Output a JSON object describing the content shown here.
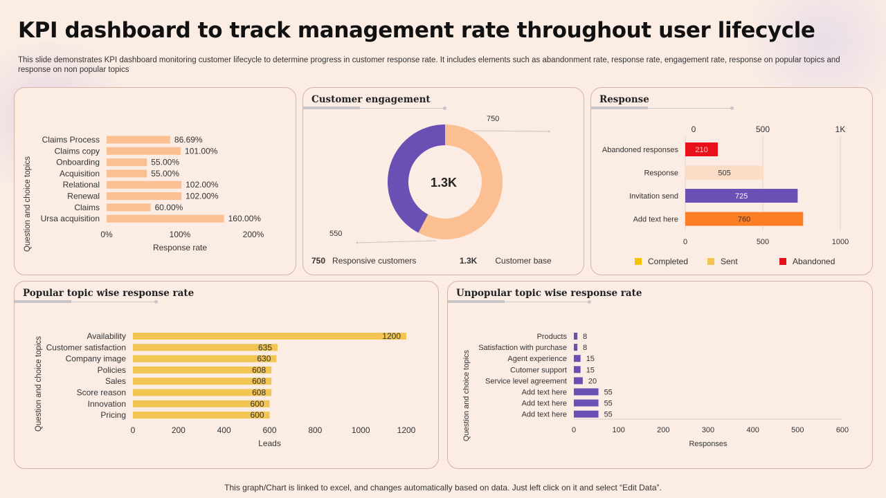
{
  "page": {
    "title": "KPI dashboard to track management rate throughout user lifecycle",
    "subtitle": "This slide demonstrates KPI dashboard monitoring customer lifecycle to determine progress in customer response rate. It includes elements such as abandonment rate, response rate, engagement rate, response on popular topics and response on non popular topics",
    "footer": "This graph/Chart is linked to excel, and changes automatically based on data. Just left click on it and select “Edit Data”."
  },
  "colors": {
    "background": "#fbece4",
    "peach": "#fbbf91",
    "purple": "#6a4fb5",
    "gold": "#f2c451",
    "red": "#e8101a",
    "orange": "#fb7d24",
    "yellow": "#f4c400"
  },
  "panels": {
    "customer_engagement": {
      "title": "Customer engagement",
      "responsive_value": "750",
      "responsive_label": "Responsive customers",
      "base_value": "1.3K",
      "base_label": "Customer base"
    },
    "response": {
      "title": "Response",
      "legend": [
        "Completed",
        "Sent",
        "Abandoned"
      ]
    },
    "popular": {
      "title": "Popular topic wise response rate"
    },
    "unpopular": {
      "title": "Unpopular topic wise response rate"
    }
  },
  "chart_data": [
    {
      "id": "response-rate",
      "type": "bar",
      "orientation": "horizontal",
      "categories": [
        "Claims Process",
        "Claims copy",
        "Onboarding",
        "Acquisition",
        "Relational",
        "Renewal",
        "Claims",
        "Ursa acquisition"
      ],
      "values": [
        86.69,
        101.0,
        55.0,
        55.0,
        102.0,
        102.0,
        60.0,
        160.0
      ],
      "value_labels": [
        "86.69%",
        "101.00%",
        "55.00%",
        "55.00%",
        "102.00%",
        "102.00%",
        "60.00%",
        "160.00%"
      ],
      "xlim": [
        0,
        200
      ],
      "xticks": [
        0,
        100,
        200
      ],
      "xtick_labels": [
        "0%",
        "100%",
        "200%"
      ],
      "xlabel": "Response rate",
      "ylabel": "Question and choice topics"
    },
    {
      "id": "customer-engagement",
      "type": "pie",
      "donut": true,
      "center_label": "1.3K",
      "slices": [
        {
          "label": "750",
          "value": 750,
          "color": "#fbbf91"
        },
        {
          "label": "550",
          "value": 550,
          "color": "#6a4fb5"
        }
      ]
    },
    {
      "id": "response",
      "type": "bar",
      "orientation": "horizontal",
      "categories": [
        "Abandoned responses",
        "Response",
        "Invitation send",
        "Add text here"
      ],
      "values": [
        210,
        505,
        725,
        760
      ],
      "colors": [
        "#e8101a",
        "#fbdcc6",
        "#6a4fb5",
        "#fb7d24"
      ],
      "label_colors": [
        "#e8101a",
        "#333333",
        "#ffffff",
        "#333333"
      ],
      "xlim": [
        0,
        1000
      ],
      "top_ticks": [
        0,
        500,
        1000
      ],
      "top_tick_labels": [
        "0",
        "500",
        "1K"
      ],
      "bottom_ticks": [
        0,
        500,
        1000
      ],
      "bottom_tick_labels": [
        "0",
        "500",
        "1000"
      ],
      "legend": [
        {
          "label": "Completed",
          "color": "#f4c400"
        },
        {
          "label": "Sent",
          "color": "#f2c451"
        },
        {
          "label": "Abandoned",
          "color": "#e8101a"
        }
      ]
    },
    {
      "id": "popular",
      "type": "bar",
      "orientation": "horizontal",
      "categories": [
        "Availability",
        "Customer satisfaction",
        "Company image",
        "Policies",
        "Sales",
        "Score reason",
        "Innovation",
        "Pricing"
      ],
      "values": [
        1200,
        635,
        630,
        608,
        608,
        608,
        600,
        600
      ],
      "xlim": [
        0,
        1200
      ],
      "xticks": [
        0,
        200,
        400,
        600,
        800,
        1000,
        1200
      ],
      "xlabel": "Leads",
      "ylabel": "Question and choice topics"
    },
    {
      "id": "unpopular",
      "type": "bar",
      "orientation": "horizontal",
      "categories": [
        "Products",
        "Satisfaction with purchase",
        "Agent experience",
        "Cutomer support",
        "Service level agreement",
        "Add text here",
        "Add text here",
        "Add text here"
      ],
      "values": [
        8,
        8,
        15,
        15,
        20,
        55,
        55,
        55
      ],
      "xlim": [
        0,
        600
      ],
      "xticks": [
        0,
        100,
        200,
        300,
        400,
        500,
        600
      ],
      "xlabel": "Responses",
      "ylabel": "Question and choice topics"
    }
  ]
}
